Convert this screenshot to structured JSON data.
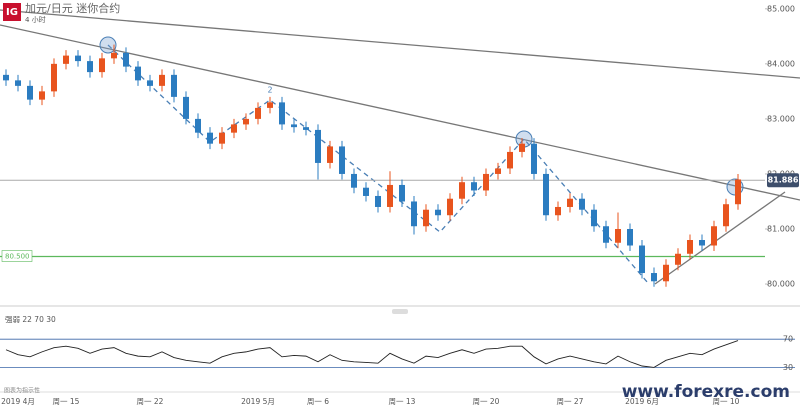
{
  "header": {
    "logo": "IG",
    "title": "加元/日元 迷你合约",
    "interval": "4 小时"
  },
  "footnote": "图表为指示性",
  "watermark": "www.forexre.com",
  "chart_data": [
    {
      "type": "candlestick",
      "annotation": "2",
      "categories": [
        null,
        "2019 4月",
        null,
        null,
        null,
        "周一 15",
        null,
        null,
        null,
        null,
        null,
        null,
        "周一 22",
        null,
        null,
        null,
        null,
        null,
        null,
        null,
        null,
        "2019 5月",
        null,
        null,
        null,
        null,
        "周一 6",
        null,
        null,
        null,
        null,
        null,
        null,
        "周一 13",
        null,
        null,
        null,
        null,
        null,
        null,
        "周一 20",
        null,
        null,
        null,
        null,
        null,
        null,
        "周一 27",
        null,
        null,
        null,
        null,
        null,
        "2019 6月",
        null,
        null,
        null,
        null,
        null,
        null,
        "周一 10",
        null
      ],
      "open": [
        83.8,
        83.7,
        83.6,
        83.35,
        83.5,
        84.0,
        84.15,
        84.05,
        83.85,
        84.1,
        84.2,
        83.95,
        83.7,
        83.6,
        83.8,
        83.4,
        83.0,
        82.75,
        82.55,
        82.75,
        82.9,
        83.0,
        83.2,
        83.3,
        82.9,
        82.85,
        82.8,
        82.2,
        82.5,
        82.0,
        81.75,
        81.6,
        81.4,
        81.8,
        81.5,
        81.05,
        81.35,
        81.25,
        81.55,
        81.85,
        81.7,
        82.0,
        82.1,
        82.4,
        82.55,
        82.0,
        81.25,
        81.4,
        81.55,
        81.35,
        81.05,
        80.75,
        81.0,
        80.7,
        80.2,
        80.05,
        80.35,
        80.55,
        80.8,
        80.7,
        81.05,
        81.45
      ],
      "high": [
        83.9,
        83.8,
        83.7,
        83.6,
        84.1,
        84.25,
        84.25,
        84.15,
        84.2,
        84.35,
        84.3,
        84.05,
        83.8,
        83.9,
        83.9,
        83.5,
        83.1,
        82.85,
        82.85,
        83.0,
        83.1,
        83.3,
        83.4,
        83.4,
        83.0,
        82.95,
        82.9,
        82.6,
        82.6,
        82.1,
        81.85,
        81.7,
        82.05,
        81.9,
        81.6,
        81.45,
        81.45,
        81.65,
        81.95,
        81.95,
        82.1,
        82.2,
        82.5,
        82.65,
        82.65,
        82.1,
        81.5,
        81.65,
        81.65,
        81.45,
        81.15,
        81.3,
        81.1,
        80.8,
        80.3,
        80.45,
        80.65,
        80.9,
        80.9,
        81.15,
        81.55,
        82.0
      ],
      "low": [
        83.6,
        83.5,
        83.25,
        83.25,
        83.4,
        83.9,
        83.95,
        83.75,
        83.75,
        84.0,
        83.85,
        83.6,
        83.5,
        83.5,
        83.3,
        82.9,
        82.65,
        82.45,
        82.45,
        82.65,
        82.8,
        82.9,
        83.1,
        82.8,
        82.75,
        82.7,
        81.9,
        82.1,
        81.9,
        81.65,
        81.5,
        81.3,
        81.3,
        81.4,
        80.9,
        80.95,
        81.15,
        81.15,
        81.45,
        81.6,
        81.6,
        81.9,
        82.0,
        82.3,
        81.9,
        81.15,
        81.15,
        81.3,
        81.25,
        80.95,
        80.65,
        80.65,
        80.6,
        80.1,
        79.95,
        79.95,
        80.25,
        80.45,
        80.6,
        80.6,
        80.95,
        81.35
      ],
      "close": [
        83.7,
        83.6,
        83.35,
        83.5,
        84.0,
        84.15,
        84.05,
        83.85,
        84.1,
        84.2,
        83.95,
        83.7,
        83.6,
        83.8,
        83.4,
        83.0,
        82.75,
        82.55,
        82.75,
        82.9,
        83.0,
        83.2,
        83.3,
        82.9,
        82.85,
        82.8,
        82.2,
        82.5,
        82.0,
        81.75,
        81.6,
        81.4,
        81.8,
        81.5,
        81.05,
        81.35,
        81.25,
        81.55,
        81.85,
        81.7,
        82.0,
        82.1,
        82.4,
        82.55,
        82.0,
        81.25,
        81.4,
        81.55,
        81.35,
        81.05,
        80.75,
        81.0,
        80.7,
        80.2,
        80.05,
        80.35,
        80.55,
        80.8,
        80.7,
        81.05,
        81.45,
        81.9
      ],
      "up_color": "#e8541e",
      "down_color": "#2b7cc0",
      "ylim": [
        79.71,
        85.16
      ],
      "yticks": [
        {
          "value": 85,
          "label": "85.000"
        },
        {
          "value": 84,
          "label": "84.000"
        },
        {
          "value": 83,
          "label": "83.000"
        },
        {
          "value": 82,
          "label": "82.000"
        },
        {
          "value": 81,
          "label": "81.000"
        },
        {
          "value": 80,
          "label": "80.000"
        }
      ],
      "price_line": {
        "value": 81.886,
        "label": "81.886"
      },
      "level_line": {
        "value": 80.5,
        "label": "80.500"
      }
    },
    {
      "type": "line",
      "title": "强弱 22 70 30",
      "color": "#222222",
      "values": [
        55,
        48,
        45,
        52,
        58,
        60,
        57,
        50,
        56,
        58,
        50,
        46,
        45,
        52,
        44,
        40,
        38,
        36,
        45,
        50,
        52,
        56,
        58,
        45,
        47,
        46,
        38,
        48,
        40,
        38,
        37,
        36,
        50,
        42,
        36,
        46,
        44,
        50,
        55,
        50,
        56,
        57,
        60,
        60,
        45,
        35,
        42,
        46,
        42,
        38,
        35,
        46,
        38,
        32,
        30,
        40,
        45,
        50,
        48,
        56,
        62,
        68
      ],
      "ylim": [
        15,
        100
      ],
      "yticks": [
        70,
        30
      ]
    }
  ]
}
